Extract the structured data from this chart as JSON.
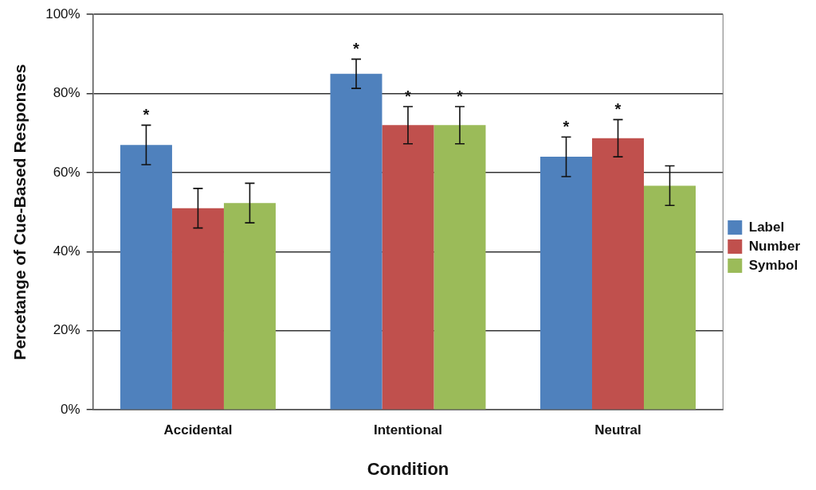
{
  "chart_data": {
    "type": "bar",
    "xlabel": "Condition",
    "ylabel": "Percetange of Cue-Based Responses",
    "categories": [
      "Accidental",
      "Intentional",
      "Neutral"
    ],
    "series": [
      {
        "name": "Label",
        "color": "#4f81bd",
        "values": [
          67,
          85,
          64
        ],
        "errors": [
          5,
          3.7,
          5
        ],
        "value_labels": [
          "*",
          "*",
          "*"
        ]
      },
      {
        "name": "Number",
        "color": "#c0504d",
        "values": [
          51,
          72,
          68.7
        ],
        "errors": [
          5,
          4.7,
          4.7
        ],
        "value_labels": [
          null,
          "*",
          "*"
        ]
      },
      {
        "name": "Symbol",
        "color": "#9bbb59",
        "values": [
          52.3,
          72,
          56.7
        ],
        "errors": [
          5,
          4.7,
          5
        ],
        "value_labels": [
          null,
          "*",
          null
        ]
      }
    ],
    "ylim": [
      0,
      100
    ],
    "yticks": [
      {
        "value": 0,
        "label": "0%"
      },
      {
        "value": 20,
        "label": "20%"
      },
      {
        "value": 40,
        "label": "40%"
      },
      {
        "value": 60,
        "label": "60%"
      },
      {
        "value": 80,
        "label": "80%"
      },
      {
        "value": 100,
        "label": "100%"
      }
    ],
    "grid": "y",
    "legend": "right"
  }
}
